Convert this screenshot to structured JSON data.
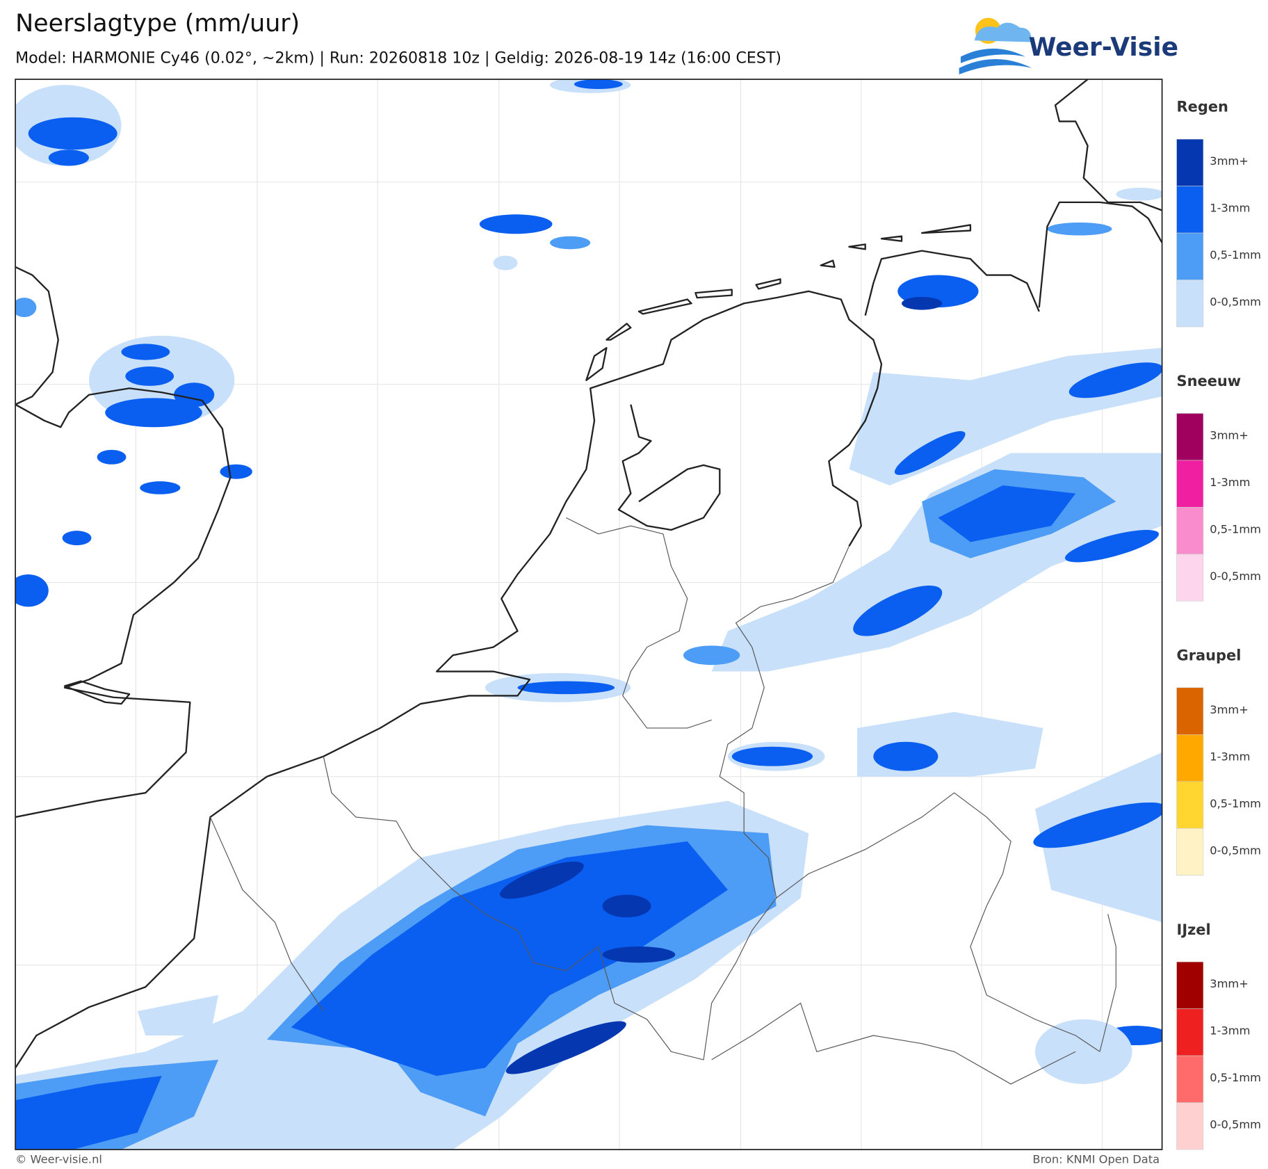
{
  "header": {
    "title": "Neerslagtype (mm/uur)",
    "subtitle": "Model: HARMONIE Cy46 (0.02°, ~2km)  |  Run: 20260818 10z  |  Geldig: 2026-08-19 14z (16:00 CEST)",
    "logo": "Weer-Visie"
  },
  "legend": [
    {
      "title": "Regen",
      "items": [
        {
          "label": "3mm+",
          "color": "#0538b0"
        },
        {
          "label": "1-3mm",
          "color": "#0a5ef0"
        },
        {
          "label": "0,5-1mm",
          "color": "#4d9cf5"
        },
        {
          "label": "0-0,5mm",
          "color": "#c8e0fa"
        }
      ]
    },
    {
      "title": "Sneeuw",
      "items": [
        {
          "label": "3mm+",
          "color": "#a0005e"
        },
        {
          "label": "1-3mm",
          "color": "#f01ea0"
        },
        {
          "label": "0,5-1mm",
          "color": "#f88ccc"
        },
        {
          "label": "0-0,5mm",
          "color": "#fdd5ec"
        }
      ]
    },
    {
      "title": "Graupel",
      "items": [
        {
          "label": "3mm+",
          "color": "#d96400"
        },
        {
          "label": "1-3mm",
          "color": "#ffa800"
        },
        {
          "label": "0,5-1mm",
          "color": "#ffd630"
        },
        {
          "label": "0-0,5mm",
          "color": "#fff2c4"
        }
      ]
    },
    {
      "title": "IJzel",
      "items": [
        {
          "label": "3mm+",
          "color": "#a00000"
        },
        {
          "label": "1-3mm",
          "color": "#ee2020"
        },
        {
          "label": "0,5-1mm",
          "color": "#ff6b6b"
        },
        {
          "label": "0-0,5mm",
          "color": "#ffd0d0"
        }
      ]
    }
  ],
  "footer": {
    "left": "© Weer-visie.nl",
    "right": "Bron: KNMI Open Data"
  }
}
